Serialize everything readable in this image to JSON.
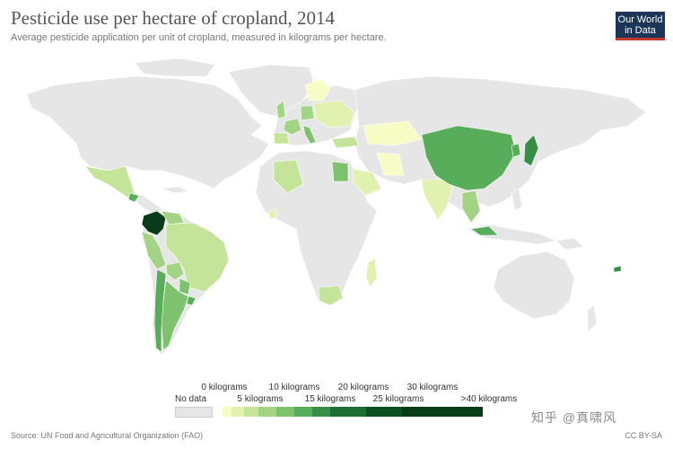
{
  "header": {
    "title": "Pesticide use per hectare of cropland, 2014",
    "subtitle": "Average pesticide application per unit of cropland, measured in kilograms per hectare."
  },
  "logo": {
    "line1": "Our World",
    "line2": "in Data"
  },
  "colors": {
    "no_data": "#e6e6e6",
    "ocean": "#ffffff",
    "border": "#ffffff",
    "scale": [
      "#f7fcc4",
      "#e0f1b0",
      "#c4e49a",
      "#a3d485",
      "#7ec26f",
      "#58ad5a",
      "#378f45",
      "#1d6e33",
      "#0b4f22",
      "#063c18"
    ]
  },
  "legend": {
    "no_data_label": "No data",
    "top_labels": [
      "0 kilograms",
      "10 kilograms",
      "20 kilograms",
      "30 kilograms"
    ],
    "bottom_labels": [
      "5 kilograms",
      "15 kilograms",
      "25 kilograms",
      ">40 kilograms"
    ]
  },
  "footer": {
    "source": "Source: UN Food and Agricultural Organization (FAO)",
    "license": "CC BY-SA"
  },
  "watermark": "知乎 @真啸风"
}
